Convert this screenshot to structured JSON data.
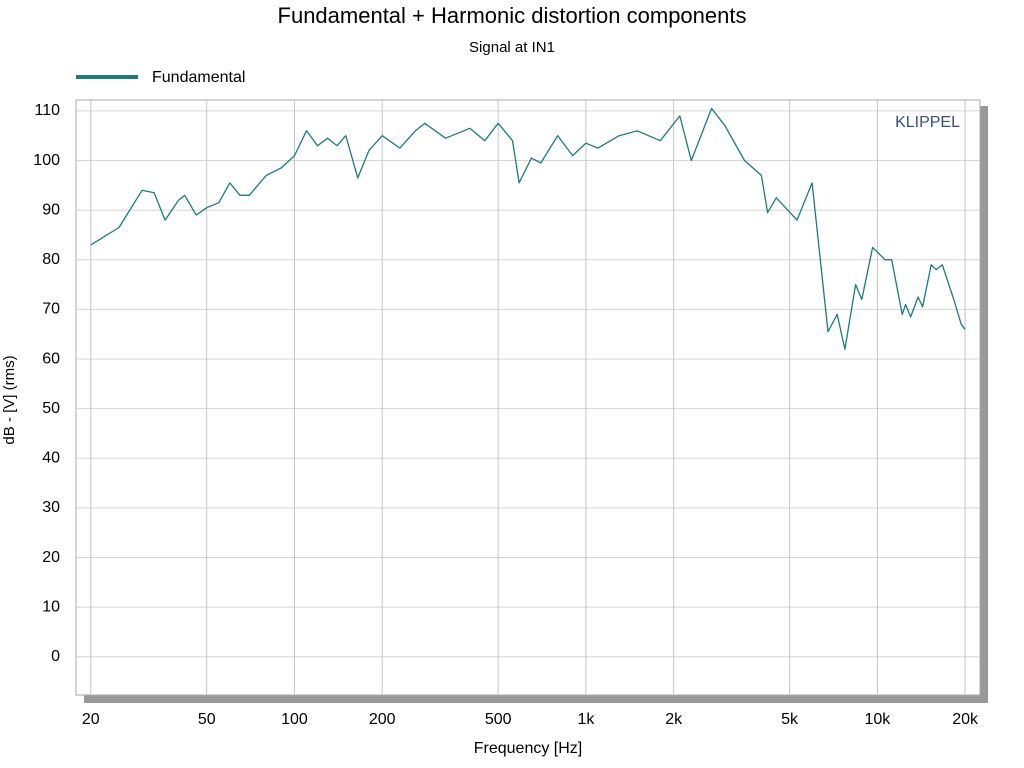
{
  "chart_data": {
    "type": "line",
    "title": "Fundamental + Harmonic distortion components",
    "subtitle": "Signal at IN1",
    "xlabel": "Frequency [Hz]",
    "ylabel": "dB - [V]  (rms)",
    "annotation": "KLIPPEL",
    "xscale": "log",
    "grid": true,
    "legend": "top-left",
    "xlim": [
      17.8,
      22500
    ],
    "ylim": [
      -7.7,
      112.2
    ],
    "xticks": [
      20,
      50,
      100,
      200,
      500,
      {
        "value": 1000,
        "label": "1k"
      },
      {
        "value": 2000,
        "label": "2k"
      },
      {
        "value": 5000,
        "label": "5k"
      },
      {
        "value": 10000,
        "label": "10k"
      },
      {
        "value": 20000,
        "label": "20k"
      }
    ],
    "yticks": [
      0,
      10,
      20,
      30,
      40,
      50,
      60,
      70,
      80,
      90,
      100,
      110
    ],
    "x": [
      20,
      25,
      30,
      33,
      36,
      40,
      42,
      46,
      50,
      55,
      60,
      65,
      70,
      80,
      90,
      100,
      110,
      120,
      130,
      140,
      150,
      165,
      180,
      200,
      230,
      260,
      280,
      330,
      400,
      450,
      500,
      560,
      590,
      650,
      700,
      800,
      900,
      1000,
      1100,
      1300,
      1500,
      1800,
      2100,
      2300,
      2700,
      3000,
      3500,
      4000,
      4200,
      4500,
      5300,
      5970,
      6770,
      7280,
      7740,
      8420,
      8840,
      9630,
      10630,
      11200,
      12170,
      12500,
      13000,
      13800,
      14300,
      15300,
      15900,
      16700,
      18300,
      19400,
      20000
    ],
    "series": [
      {
        "name": "Fundamental",
        "color": "#1f7a78",
        "values": [
          83,
          86.5,
          94,
          93.5,
          88,
          92,
          93,
          89,
          90.5,
          91.5,
          95.5,
          93,
          93,
          97,
          98.5,
          101,
          106,
          103,
          104.5,
          103,
          105,
          96.5,
          102,
          105,
          102.5,
          106,
          107.5,
          104.5,
          106.5,
          104,
          107.5,
          104,
          95.5,
          100.5,
          99.5,
          105,
          101,
          103.5,
          102.5,
          105,
          106,
          104,
          109,
          100,
          110.5,
          107,
          100,
          97,
          89.5,
          92.5,
          88,
          95.5,
          65.5,
          69,
          62,
          75,
          72,
          82.5,
          80,
          80,
          69,
          71,
          68.5,
          72.5,
          70.5,
          79,
          78,
          79,
          72,
          67,
          66
        ]
      }
    ]
  }
}
